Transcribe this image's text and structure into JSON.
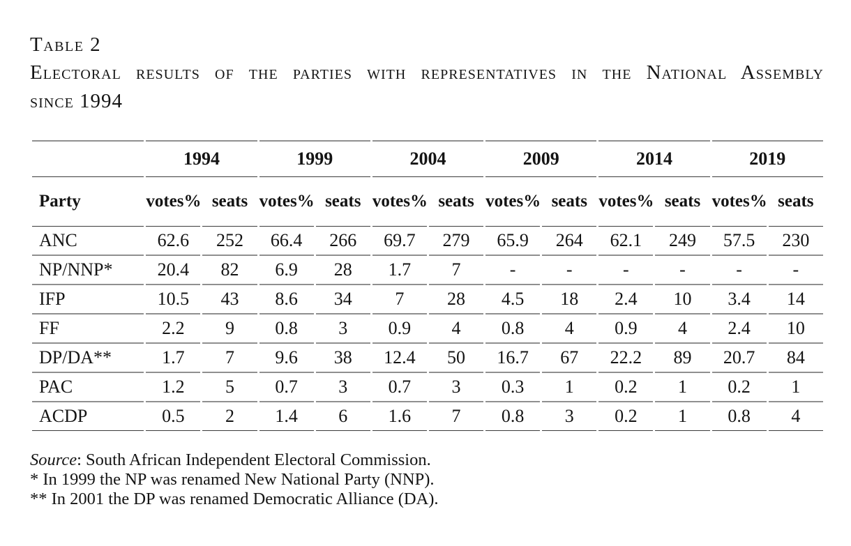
{
  "heading": {
    "table_label": "Table 2",
    "title_line1": "Electoral results of the parties with representatives in the National Assembly",
    "title_line2": "since 1994"
  },
  "table": {
    "years": [
      "1994",
      "1999",
      "2004",
      "2009",
      "2014",
      "2019"
    ],
    "party_header": "Party",
    "subheaders": [
      "votes%",
      "seats"
    ],
    "rows": [
      {
        "party": "ANC",
        "values": [
          "62.6",
          "252",
          "66.4",
          "266",
          "69.7",
          "279",
          "65.9",
          "264",
          "62.1",
          "249",
          "57.5",
          "230"
        ]
      },
      {
        "party": "NP/NNP*",
        "values": [
          "20.4",
          "82",
          "6.9",
          "28",
          "1.7",
          "7",
          "-",
          "-",
          "-",
          "-",
          "-",
          "-"
        ]
      },
      {
        "party": "IFP",
        "values": [
          "10.5",
          "43",
          "8.6",
          "34",
          "7",
          "28",
          "4.5",
          "18",
          "2.4",
          "10",
          "3.4",
          "14"
        ]
      },
      {
        "party": "FF",
        "values": [
          "2.2",
          "9",
          "0.8",
          "3",
          "0.9",
          "4",
          "0.8",
          "4",
          "0.9",
          "4",
          "2.4",
          "10"
        ]
      },
      {
        "party": "DP/DA**",
        "values": [
          "1.7",
          "7",
          "9.6",
          "38",
          "12.4",
          "50",
          "16.7",
          "67",
          "22.2",
          "89",
          "20.7",
          "84"
        ]
      },
      {
        "party": "PAC",
        "values": [
          "1.2",
          "5",
          "0.7",
          "3",
          "0.7",
          "3",
          "0.3",
          "1",
          "0.2",
          "1",
          "0.2",
          "1"
        ]
      },
      {
        "party": "ACDP",
        "values": [
          "0.5",
          "2",
          "1.4",
          "6",
          "1.6",
          "7",
          "0.8",
          "3",
          "0.2",
          "1",
          "0.8",
          "4"
        ]
      }
    ]
  },
  "notes": {
    "source_label": "Source",
    "source_rest": ": South African Independent Electoral Commission.",
    "footnote_np": "* In 1999 the NP was renamed New National Party (NNP).",
    "footnote_dp": "** In 2001 the DP was renamed Democratic Alliance (DA)."
  },
  "colors": {
    "text": "#141414",
    "rule_gray": "#8f8f8f",
    "rule_dark": "#3a3a3a",
    "background": "#ffffff"
  }
}
